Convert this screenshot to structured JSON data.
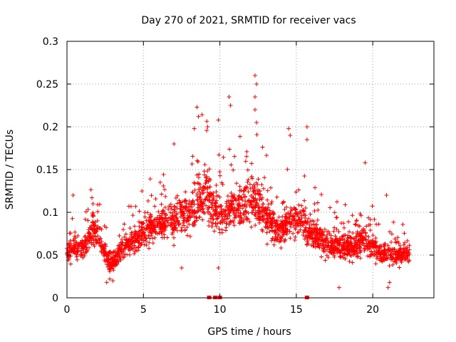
{
  "chart_data": {
    "type": "scatter",
    "title": "Day 270 of 2021, SRMTID for receiver vacs",
    "xlabel": "GPS time / hours",
    "ylabel": "SRMTID / TECUs",
    "xlim": [
      0,
      24
    ],
    "ylim": [
      0,
      0.3
    ],
    "xticks": [
      0,
      5,
      10,
      15,
      20
    ],
    "xtick_labels": [
      "0",
      "5",
      "10",
      "15",
      "20"
    ],
    "yticks": [
      0,
      0.05,
      0.1,
      0.15,
      0.2,
      0.25,
      0.3
    ],
    "ytick_labels": [
      "0",
      "0.05",
      "0.1",
      "0.15",
      "0.2",
      "0.25",
      "0.3"
    ],
    "grid": true,
    "marker": "+",
    "color": "#ff0000",
    "x_range": [
      0.0,
      22.4
    ],
    "trend": [
      [
        0.0,
        0.05
      ],
      [
        0.4,
        0.06
      ],
      [
        0.8,
        0.055
      ],
      [
        1.2,
        0.06
      ],
      [
        1.6,
        0.075
      ],
      [
        2.0,
        0.075
      ],
      [
        2.4,
        0.055
      ],
      [
        2.8,
        0.04
      ],
      [
        3.2,
        0.045
      ],
      [
        3.6,
        0.055
      ],
      [
        4.0,
        0.062
      ],
      [
        4.5,
        0.068
      ],
      [
        5.0,
        0.078
      ],
      [
        5.5,
        0.085
      ],
      [
        6.0,
        0.085
      ],
      [
        6.5,
        0.09
      ],
      [
        7.0,
        0.09
      ],
      [
        7.5,
        0.095
      ],
      [
        8.0,
        0.1
      ],
      [
        8.5,
        0.11
      ],
      [
        9.0,
        0.125
      ],
      [
        9.5,
        0.11
      ],
      [
        10.0,
        0.095
      ],
      [
        10.5,
        0.1
      ],
      [
        11.0,
        0.105
      ],
      [
        11.5,
        0.11
      ],
      [
        12.0,
        0.115
      ],
      [
        12.5,
        0.11
      ],
      [
        13.0,
        0.095
      ],
      [
        13.5,
        0.085
      ],
      [
        14.0,
        0.075
      ],
      [
        14.5,
        0.09
      ],
      [
        15.0,
        0.095
      ],
      [
        15.5,
        0.085
      ],
      [
        16.0,
        0.075
      ],
      [
        16.5,
        0.068
      ],
      [
        17.0,
        0.062
      ],
      [
        17.5,
        0.058
      ],
      [
        18.0,
        0.058
      ],
      [
        18.5,
        0.06
      ],
      [
        19.0,
        0.062
      ],
      [
        19.5,
        0.07
      ],
      [
        20.0,
        0.06
      ],
      [
        20.5,
        0.052
      ],
      [
        21.0,
        0.05
      ],
      [
        21.5,
        0.05
      ],
      [
        22.0,
        0.052
      ],
      [
        22.4,
        0.055
      ]
    ],
    "spikes": [
      [
        0.4,
        0.12
      ],
      [
        1.7,
        0.11
      ],
      [
        6.1,
        0.135
      ],
      [
        7.0,
        0.18
      ],
      [
        8.5,
        0.223
      ],
      [
        8.6,
        0.212
      ],
      [
        9.2,
        0.2
      ],
      [
        9.9,
        0.208
      ],
      [
        10.6,
        0.235
      ],
      [
        10.7,
        0.225
      ],
      [
        12.3,
        0.26
      ],
      [
        12.4,
        0.25
      ],
      [
        12.3,
        0.235
      ],
      [
        12.3,
        0.22
      ],
      [
        12.4,
        0.205
      ],
      [
        14.5,
        0.198
      ],
      [
        14.6,
        0.19
      ],
      [
        15.7,
        0.2
      ],
      [
        15.7,
        0.185
      ],
      [
        19.5,
        0.158
      ],
      [
        20.9,
        0.12
      ]
    ],
    "lows": [
      [
        2.6,
        0.018
      ],
      [
        2.8,
        0.022
      ],
      [
        3.0,
        0.02
      ],
      [
        7.5,
        0.035
      ],
      [
        9.9,
        0.035
      ],
      [
        17.8,
        0.012
      ],
      [
        21.0,
        0.012
      ],
      [
        21.1,
        0.018
      ]
    ],
    "gap_markers": [
      9.3,
      9.7,
      10.0,
      15.7
    ]
  }
}
